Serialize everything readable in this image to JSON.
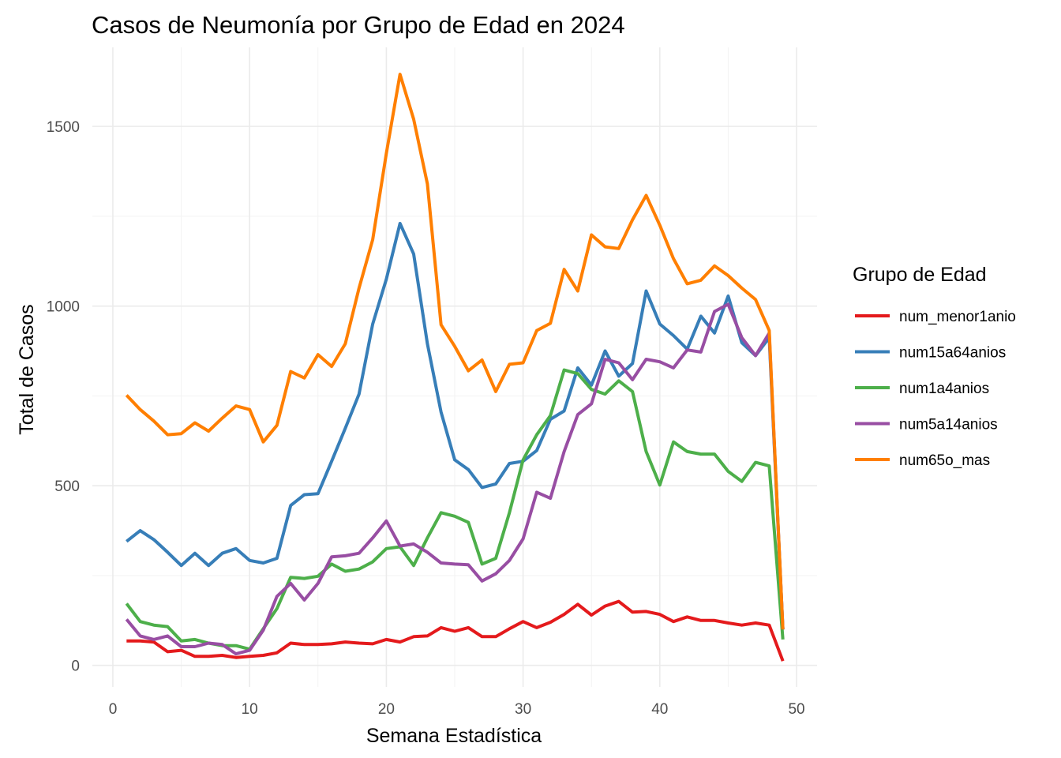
{
  "chart_data": {
    "type": "line",
    "title": "Casos de Neumonía por Grupo de Edad en 2024",
    "xlabel": "Semana Estadística",
    "ylabel": "Total de Casos",
    "xlim": [
      -1.5,
      51.5
    ],
    "ylim": [
      -60,
      1720
    ],
    "x_ticks": [
      0,
      10,
      20,
      30,
      40,
      50
    ],
    "y_ticks": [
      0,
      500,
      1000,
      1500
    ],
    "grid": true,
    "legend": {
      "title": "Grupo de Edad",
      "position": "right"
    },
    "x": [
      1,
      2,
      3,
      4,
      5,
      6,
      7,
      8,
      9,
      10,
      11,
      12,
      13,
      14,
      15,
      16,
      17,
      18,
      19,
      20,
      21,
      22,
      23,
      24,
      25,
      26,
      27,
      28,
      29,
      30,
      31,
      32,
      33,
      34,
      35,
      36,
      37,
      38,
      39,
      40,
      41,
      42,
      43,
      44,
      45,
      46,
      47,
      48,
      49
    ],
    "series": [
      {
        "name": "num_menor1anio",
        "color": "#e41a1c",
        "values": [
          68,
          68,
          65,
          38,
          42,
          25,
          25,
          28,
          22,
          25,
          28,
          35,
          62,
          58,
          58,
          60,
          65,
          62,
          60,
          72,
          65,
          80,
          82,
          105,
          95,
          105,
          80,
          80,
          102,
          122,
          105,
          120,
          142,
          170,
          140,
          165,
          178,
          148,
          150,
          142,
          122,
          135,
          125,
          125,
          118,
          112,
          118,
          112,
          12
        ]
      },
      {
        "name": "num15a64anios",
        "color": "#377eb8",
        "values": [
          345,
          375,
          350,
          315,
          278,
          312,
          278,
          312,
          325,
          292,
          285,
          298,
          445,
          475,
          478,
          568,
          660,
          755,
          950,
          1075,
          1230,
          1145,
          895,
          705,
          572,
          545,
          495,
          505,
          562,
          568,
          598,
          685,
          708,
          828,
          780,
          875,
          805,
          840,
          1042,
          950,
          918,
          880,
          972,
          925,
          1028,
          898,
          862,
          912,
          100
        ]
      },
      {
        "name": "num1a4anios",
        "color": "#4daf4a",
        "values": [
          172,
          122,
          112,
          108,
          68,
          72,
          62,
          55,
          55,
          45,
          102,
          158,
          245,
          242,
          248,
          282,
          262,
          268,
          288,
          325,
          330,
          278,
          355,
          425,
          415,
          398,
          282,
          298,
          425,
          572,
          642,
          695,
          822,
          812,
          768,
          755,
          792,
          762,
          595,
          502,
          622,
          595,
          588,
          588,
          540,
          512,
          565,
          555,
          72
        ]
      },
      {
        "name": "num5a14anios",
        "color": "#984ea3",
        "values": [
          128,
          82,
          72,
          82,
          52,
          52,
          62,
          58,
          32,
          42,
          98,
          192,
          228,
          182,
          228,
          302,
          305,
          312,
          355,
          402,
          332,
          338,
          315,
          285,
          282,
          280,
          235,
          255,
          292,
          352,
          482,
          465,
          595,
          698,
          728,
          852,
          842,
          795,
          852,
          845,
          828,
          878,
          872,
          985,
          1005,
          912,
          862,
          925,
          100
        ]
      },
      {
        "name": "num65o_mas",
        "color": "#ff7f00",
        "values": [
          752,
          712,
          680,
          642,
          645,
          675,
          652,
          688,
          722,
          712,
          622,
          668,
          818,
          800,
          865,
          832,
          895,
          1050,
          1185,
          1425,
          1645,
          1520,
          1340,
          948,
          888,
          820,
          850,
          762,
          838,
          842,
          932,
          952,
          1102,
          1042,
          1198,
          1165,
          1160,
          1240,
          1308,
          1225,
          1132,
          1062,
          1072,
          1112,
          1085,
          1050,
          1018,
          932,
          100
        ]
      }
    ]
  }
}
